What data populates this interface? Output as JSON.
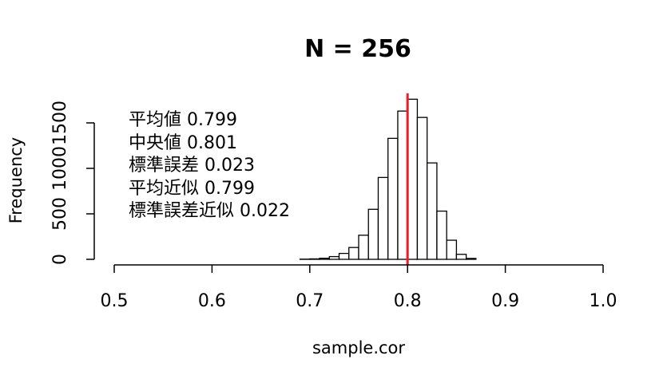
{
  "chart_data": {
    "type": "bar",
    "title": "N = 256",
    "xlabel": "sample.cor",
    "ylabel": "Frequency",
    "xlim": [
      0.5,
      1.0
    ],
    "ylim": [
      0,
      1800
    ],
    "x_ticks": [
      "0.5",
      "0.6",
      "0.7",
      "0.8",
      "0.9",
      "1.0"
    ],
    "y_ticks": [
      "0",
      "500",
      "1000",
      "1500"
    ],
    "bin_width": 0.01,
    "bins": [
      {
        "start": 0.69,
        "count": 2
      },
      {
        "start": 0.7,
        "count": 5
      },
      {
        "start": 0.71,
        "count": 12
      },
      {
        "start": 0.72,
        "count": 30
      },
      {
        "start": 0.73,
        "count": 65
      },
      {
        "start": 0.74,
        "count": 130
      },
      {
        "start": 0.75,
        "count": 265
      },
      {
        "start": 0.76,
        "count": 550
      },
      {
        "start": 0.77,
        "count": 900
      },
      {
        "start": 0.78,
        "count": 1330
      },
      {
        "start": 0.79,
        "count": 1630
      },
      {
        "start": 0.8,
        "count": 1760
      },
      {
        "start": 0.81,
        "count": 1560
      },
      {
        "start": 0.82,
        "count": 1060
      },
      {
        "start": 0.83,
        "count": 530
      },
      {
        "start": 0.84,
        "count": 210
      },
      {
        "start": 0.85,
        "count": 55
      },
      {
        "start": 0.86,
        "count": 10
      }
    ],
    "reference_line": {
      "x": 0.8,
      "color": "#ee1c25"
    },
    "annotations": [
      "平均値 0.799",
      "中央値 0.801",
      "標準誤差 0.023",
      "平均近似 0.799",
      "標準誤差近似 0.022"
    ]
  }
}
